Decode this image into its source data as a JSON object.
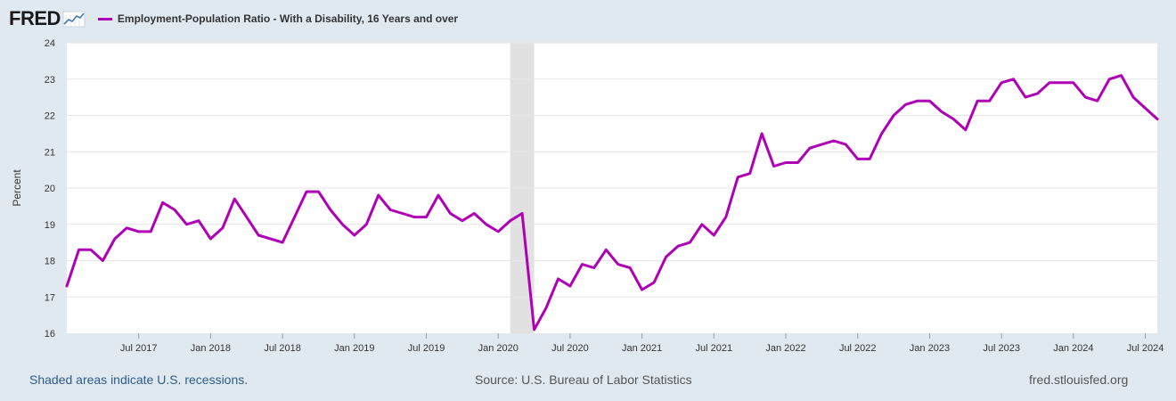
{
  "header": {
    "logo_text": "FRED",
    "logo_icon": "sparkline-chart-icon"
  },
  "colors": {
    "series": "#b000b5",
    "background": "#e1e9f0",
    "plot_bg": "#ffffff",
    "recession": "#e1e1e1",
    "grid": "#e6e6e6",
    "axis_text": "#333333",
    "link": "#2c5b8a"
  },
  "footer": {
    "recession_note": "Shaded areas indicate U.S. recessions.",
    "source": "Source: U.S. Bureau of Labor Statistics",
    "url": "fred.stlouisfed.org"
  },
  "chart_data": {
    "type": "line",
    "title": "Employment-Population Ratio - With a Disability, 16 Years and over",
    "ylabel": "Percent",
    "xlabel": "",
    "ylim": [
      16,
      24
    ],
    "yticks": [
      16,
      17,
      18,
      19,
      20,
      21,
      22,
      23,
      24
    ],
    "xrange": [
      "2017-01",
      "2024-09"
    ],
    "xticks": [
      {
        "label": "Jul 2017",
        "month": 6
      },
      {
        "label": "Jan 2018",
        "month": 12
      },
      {
        "label": "Jul 2018",
        "month": 18
      },
      {
        "label": "Jan 2019",
        "month": 24
      },
      {
        "label": "Jul 2019",
        "month": 30
      },
      {
        "label": "Jan 2020",
        "month": 36
      },
      {
        "label": "Jul 2020",
        "month": 42
      },
      {
        "label": "Jan 2021",
        "month": 48
      },
      {
        "label": "Jul 2021",
        "month": 54
      },
      {
        "label": "Jan 2022",
        "month": 60
      },
      {
        "label": "Jul 2022",
        "month": 66
      },
      {
        "label": "Jan 2023",
        "month": 72
      },
      {
        "label": "Jul 2023",
        "month": 78
      },
      {
        "label": "Jan 2024",
        "month": 84
      },
      {
        "label": "Jul 2024",
        "month": 90
      }
    ],
    "recessions": [
      {
        "start_month": 37,
        "end_month": 39,
        "label": "2020-02 to 2020-04"
      }
    ],
    "series": [
      {
        "name": "Employment-Population Ratio - With a Disability, 16 Years and over",
        "start": "2017-01",
        "frequency": "monthly",
        "values": [
          17.3,
          18.3,
          18.3,
          18.0,
          18.6,
          18.9,
          18.8,
          18.8,
          19.6,
          19.4,
          19.0,
          19.1,
          18.6,
          18.9,
          19.7,
          19.2,
          18.7,
          18.6,
          18.5,
          19.2,
          19.9,
          19.9,
          19.4,
          19.0,
          18.7,
          19.0,
          19.8,
          19.4,
          19.3,
          19.2,
          19.2,
          19.8,
          19.3,
          19.1,
          19.3,
          19.0,
          18.8,
          19.1,
          19.3,
          16.1,
          16.7,
          17.5,
          17.3,
          17.9,
          17.8,
          18.3,
          17.9,
          17.8,
          17.2,
          17.4,
          18.1,
          18.4,
          18.5,
          19.0,
          18.7,
          19.2,
          20.3,
          20.4,
          21.5,
          20.6,
          20.7,
          20.7,
          21.1,
          21.2,
          21.3,
          21.2,
          20.8,
          20.8,
          21.5,
          22.0,
          22.3,
          22.4,
          22.4,
          22.1,
          21.9,
          21.6,
          22.4,
          22.4,
          22.9,
          23.0,
          22.5,
          22.6,
          22.9,
          22.9,
          22.9,
          22.5,
          22.4,
          23.0,
          23.1,
          22.5,
          22.2,
          21.9
        ]
      }
    ]
  }
}
